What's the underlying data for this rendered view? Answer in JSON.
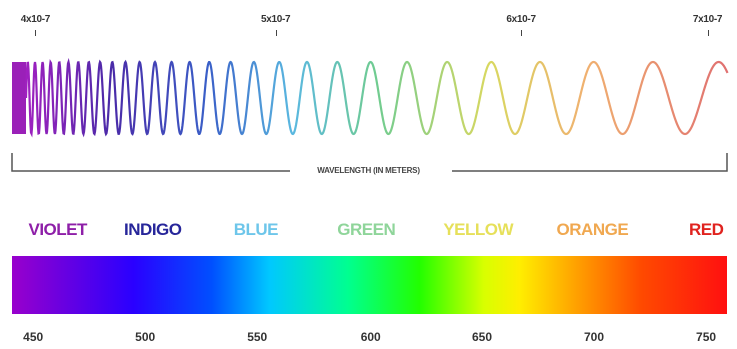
{
  "wavelength_ticks": [
    {
      "label": "4x10-7",
      "pos": 0.048
    },
    {
      "label": "5x10-7",
      "pos": 0.374
    },
    {
      "label": "6x10-7",
      "pos": 0.707
    },
    {
      "label": "7x10-7",
      "pos": 0.96
    }
  ],
  "axis_caption": "WAVELENGTH (IN METERS)",
  "color_bands": [
    {
      "name": "VIOLET",
      "color": "#8e1fa8",
      "pos": 0.078
    },
    {
      "name": "INDIGO",
      "color": "#27269a",
      "pos": 0.207
    },
    {
      "name": "BLUE",
      "color": "#6ec6ea",
      "pos": 0.347
    },
    {
      "name": "GREEN",
      "color": "#8fd59a",
      "pos": 0.497
    },
    {
      "name": "YELLOW",
      "color": "#e6e05a",
      "pos": 0.649
    },
    {
      "name": "ORANGE",
      "color": "#f0a850",
      "pos": 0.804
    },
    {
      "name": "RED",
      "color": "#e0231f",
      "pos": 0.958
    }
  ],
  "nm_scale": [
    {
      "label": "450",
      "pos": 0.045
    },
    {
      "label": "500",
      "pos": 0.197
    },
    {
      "label": "550",
      "pos": 0.349
    },
    {
      "label": "600",
      "pos": 0.503
    },
    {
      "label": "650",
      "pos": 0.654
    },
    {
      "label": "700",
      "pos": 0.806
    },
    {
      "label": "750",
      "pos": 0.958
    }
  ]
}
